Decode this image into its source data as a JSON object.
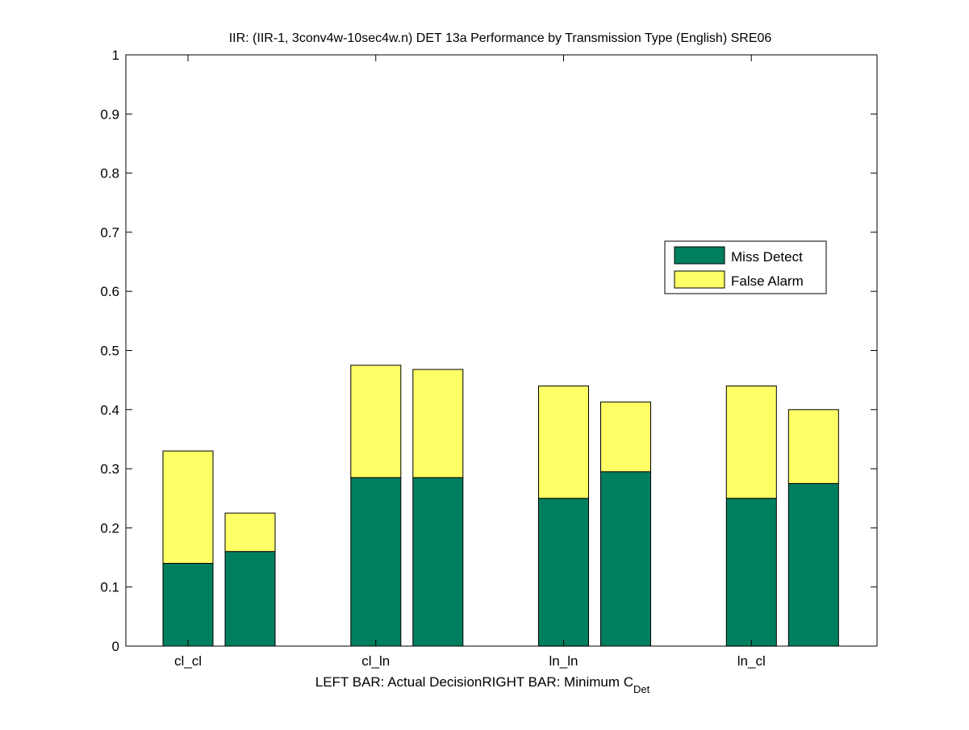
{
  "chart_data": {
    "type": "bar",
    "stacked": true,
    "title": "IIR: (IIR-1, 3conv4w-10sec4w.n) DET 13a Performance by Transmission Type (English) SRE06",
    "xlabel": {
      "left": "LEFT BAR: Actual Decision",
      "right_prefix": "RIGHT BAR: Minimum C",
      "right_subscript": "Det"
    },
    "ylabel": "",
    "ylim": [
      0,
      1
    ],
    "yticks": [
      "0",
      "0.1",
      "0.2",
      "0.3",
      "0.4",
      "0.5",
      "0.6",
      "0.7",
      "0.8",
      "0.9",
      "1"
    ],
    "categories": [
      "cl_cl",
      "cl_ln",
      "ln_ln",
      "ln_cl"
    ],
    "bars_per_category": [
      "Actual Decision",
      "Minimum C_Det"
    ],
    "series": [
      {
        "name": "Miss Detect",
        "color": "#007f5f",
        "values": [
          [
            0.14,
            0.16
          ],
          [
            0.285,
            0.285
          ],
          [
            0.25,
            0.295
          ],
          [
            0.25,
            0.275
          ]
        ]
      },
      {
        "name": "False Alarm",
        "color": "#ffff66",
        "values": [
          [
            0.19,
            0.065
          ],
          [
            0.19,
            0.183
          ],
          [
            0.19,
            0.118
          ],
          [
            0.19,
            0.125
          ]
        ]
      }
    ],
    "totals": [
      [
        0.33,
        0.225
      ],
      [
        0.475,
        0.468
      ],
      [
        0.44,
        0.413
      ],
      [
        0.44,
        0.4
      ]
    ],
    "legend_position": "upper-right",
    "grid": false
  }
}
